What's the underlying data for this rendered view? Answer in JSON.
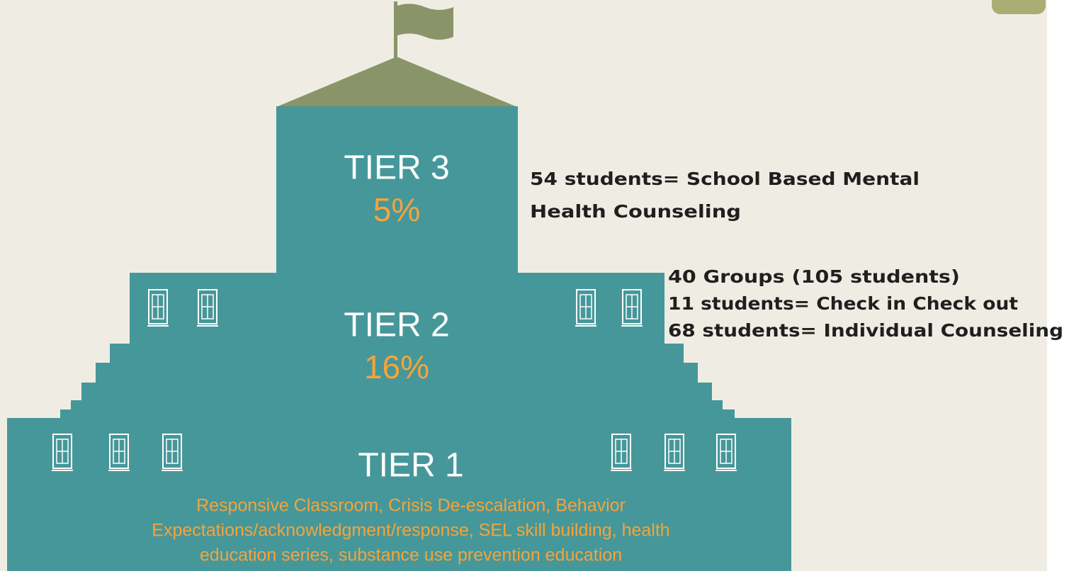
{
  "tiers": [
    {
      "label": "TIER 3",
      "percent": "5%",
      "notes": [
        "54 students= School Based Mental",
        "Health Counseling"
      ]
    },
    {
      "label": "TIER 2",
      "percent": "16%",
      "notes": [
        "40 Groups (105 students)",
        "11 students= Check in Check out",
        "68 students= Individual Counseling"
      ]
    },
    {
      "label": "TIER 1",
      "description": [
        "Responsive Classroom, Crisis De-escalation, Behavior",
        "Expectations/acknowledgment/response, SEL skill building, health",
        "education series, substance use prevention education"
      ]
    }
  ]
}
